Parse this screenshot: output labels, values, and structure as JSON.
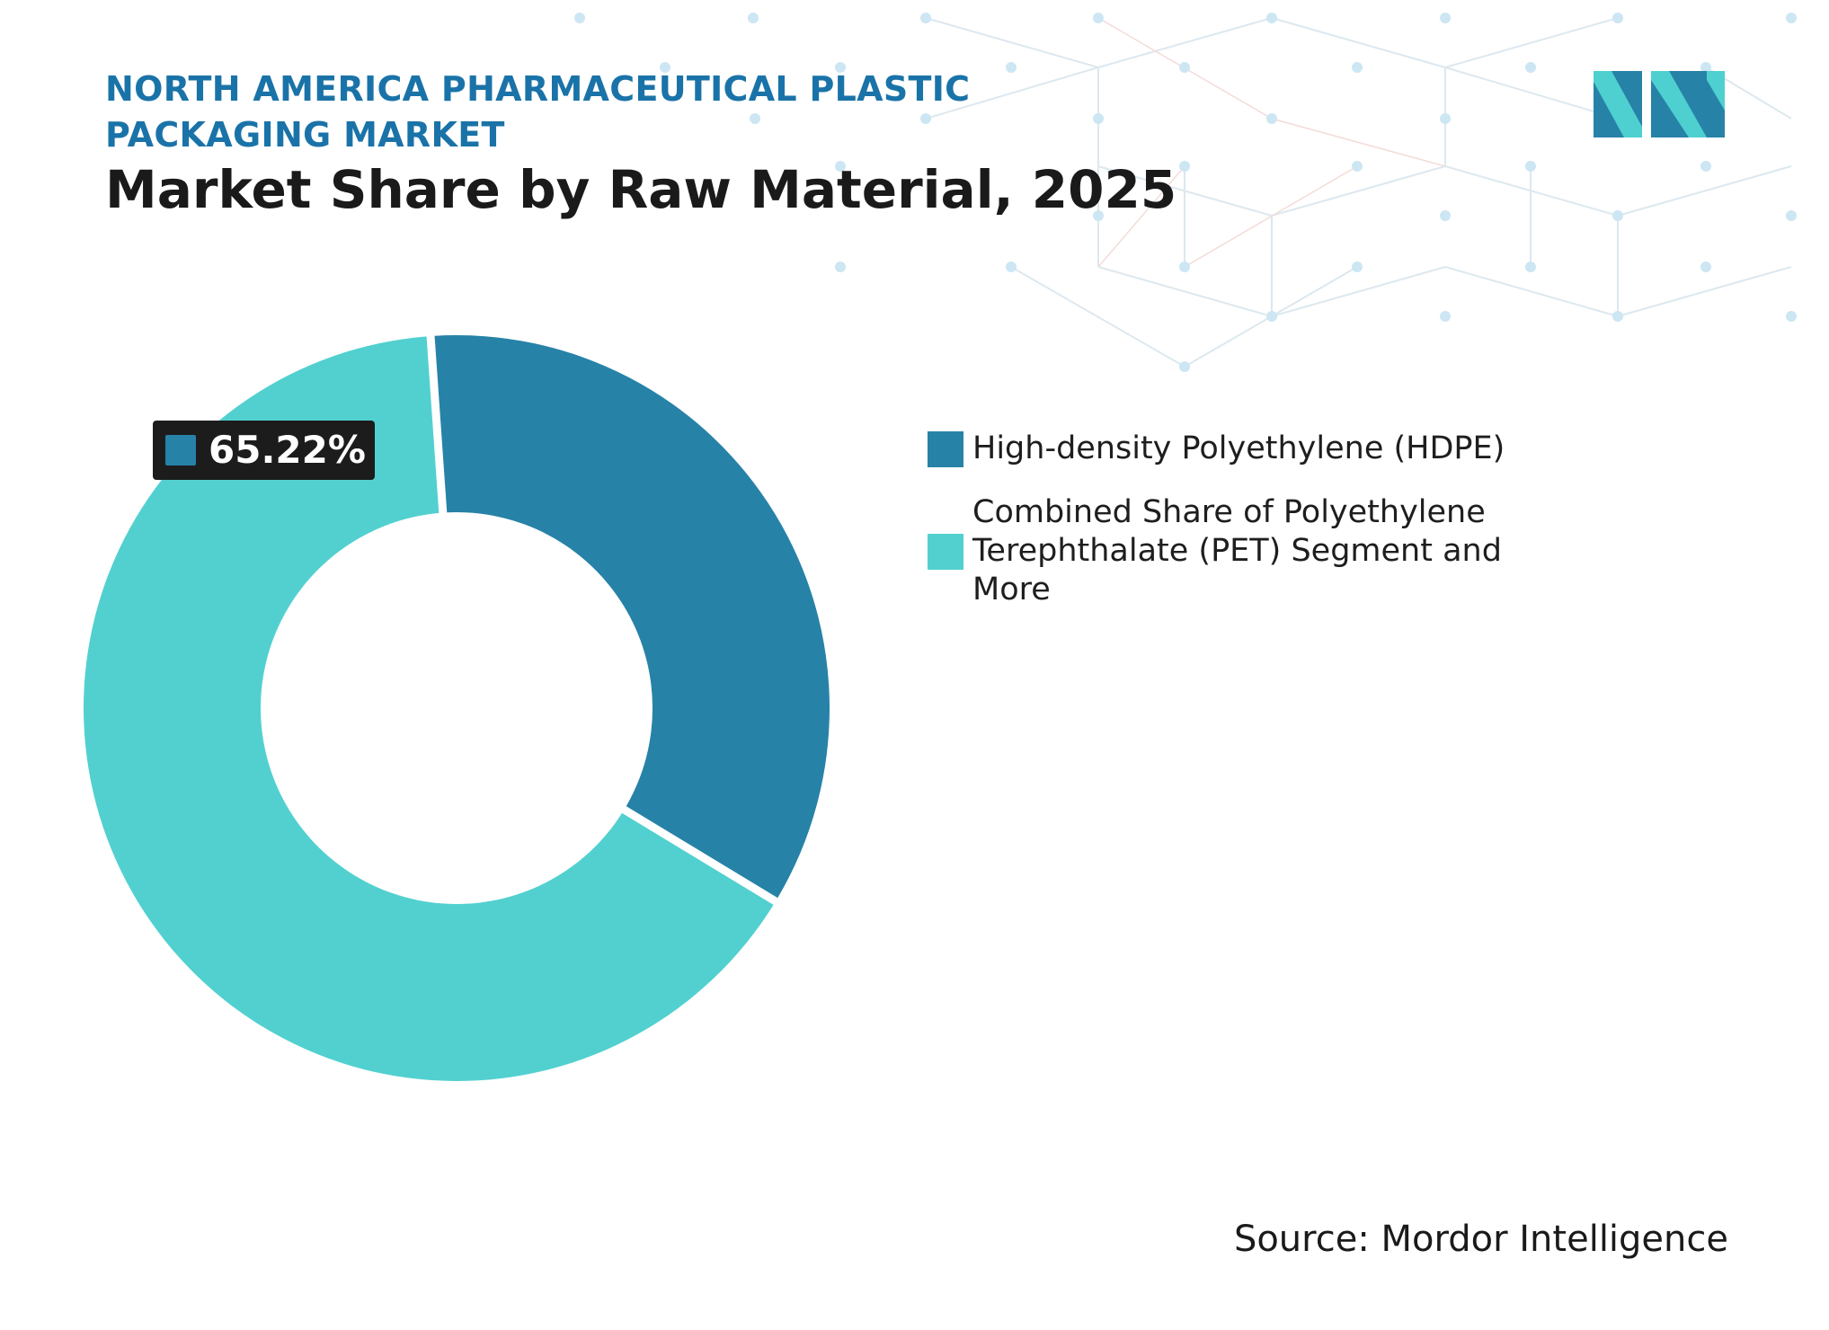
{
  "header": {
    "subtitle": "NORTH AMERICA PHARMACEUTICAL PLASTIC PACKAGING MARKET",
    "title": "Market Share by Raw Material, 2025"
  },
  "colors": {
    "hdpe": "#2782a8",
    "other": "#52d0d0",
    "subtitle": "#1a73a8",
    "label_bg": "#1c1c1c"
  },
  "chart_data": {
    "type": "pie",
    "variant": "donut",
    "title": "Market Share by Raw Material, 2025",
    "slices": [
      {
        "name": "High-density Polyethylene (HDPE)",
        "value": 34.78
      },
      {
        "name": "Combined Share of Polyethylene Terephthalate (PET) Segment and More",
        "value": 65.22
      }
    ],
    "data_label": {
      "text": "65.22%"
    },
    "legend": {
      "position": "right",
      "items": [
        "High-density Polyethylene (HDPE)",
        "Combined Share of Polyethylene Terephthalate (PET) Segment and More"
      ]
    }
  },
  "footer": {
    "source": "Source: Mordor Intelligence"
  },
  "logo": {
    "icon": "mordor-intelligence-logo-icon"
  }
}
